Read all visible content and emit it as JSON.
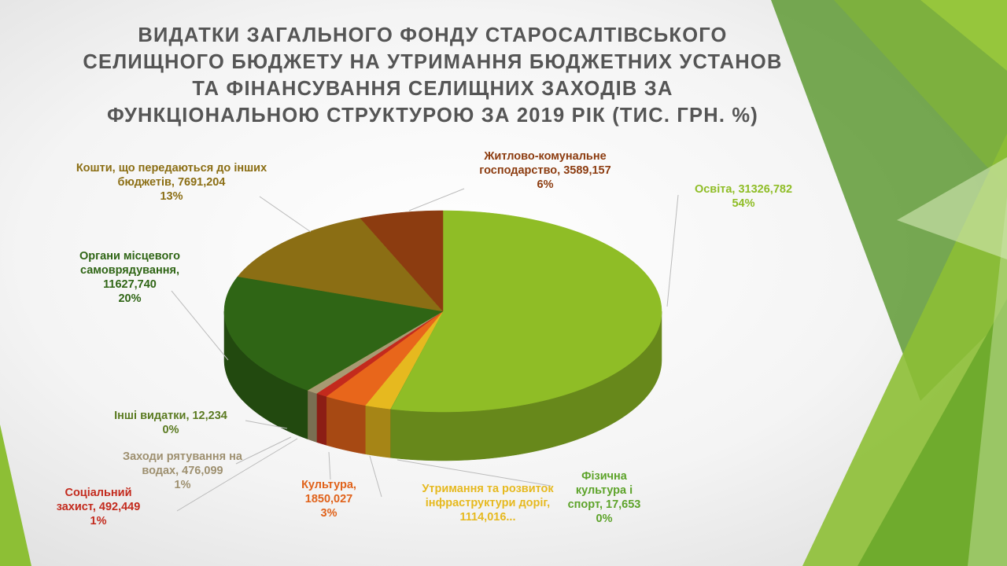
{
  "chart_data": {
    "type": "pie3d",
    "title": "ВИДАТКИ ЗАГАЛЬНОГО ФОНДУ СТАРОСАЛТІВСЬКОГО СЕЛИЩНОГО БЮДЖЕТУ НА УТРИМАННЯ БЮДЖЕТНИХ УСТАНОВ ТА ФІНАНСУВАННЯ СЕЛИЩНИХ ЗАХОДІВ ЗА ФУНКЦІОНАЛЬНОЮ СТРУКТУРОЮ ЗА 2019 РІК (ТИС. ГРН. %)",
    "values": [
      31326.782,
      17.653,
      1114.016,
      1850.027,
      492.449,
      476.099,
      12.234,
      11627.74,
      7691.204,
      3589.157
    ],
    "value_labels": [
      "Освіта, 31326,782",
      "Фізична культура і спорт, 17,653",
      "Утримання та розвиток інфраструктури доріг, 1114,016...",
      "Культура, 1850,027",
      "Соціальний захист, 492,449",
      "Заходи рятування на водах, 476,099",
      "Інші видатки, 12,234",
      "Органи місцевого самоврядування, 11627,740",
      "Кошти, що передаються до інших бюджетів, 7691,204",
      "Житлово-комунальне господарство, 3589,157"
    ],
    "percent_labels": [
      "54%",
      "0%",
      null,
      "3%",
      "1%",
      "1%",
      "0%",
      "20%",
      "13%",
      "6%"
    ],
    "colors": [
      "#8fbd26",
      "#6aa82a",
      "#e6b91f",
      "#e8661b",
      "#c32a1d",
      "#a89a72",
      "#6f8a2a",
      "#2f6515",
      "#8b6e14",
      "#8c3c10"
    ]
  }
}
